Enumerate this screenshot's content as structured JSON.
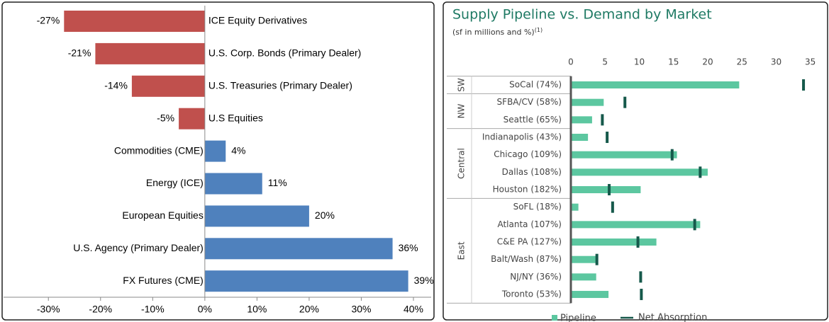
{
  "chart_data": [
    {
      "type": "hbar",
      "categories": [
        "ICE Equity Derivatives",
        "U.S. Corp. Bonds (Primary Dealer)",
        "U.S. Treasuries (Primary Dealer)",
        "U.S Equities",
        "Commodities (CME)",
        "Energy (ICE)",
        "European Equities",
        "U.S. Agency (Primary Dealer)",
        "FX Futures (CME)"
      ],
      "values": [
        -27,
        -21,
        -14,
        -5,
        4,
        11,
        20,
        36,
        39
      ],
      "value_labels": [
        "-27%",
        "-21%",
        "-14%",
        "-5%",
        "4%",
        "11%",
        "20%",
        "36%",
        "39%"
      ],
      "negative_color": "#c0504d",
      "positive_color": "#4f81bd",
      "xlim": [
        -38.6,
        43.4
      ],
      "xticks": [
        {
          "value": -30,
          "label": "-30%"
        },
        {
          "value": -20,
          "label": "-20%"
        },
        {
          "value": -10,
          "label": "-10%"
        },
        {
          "value": 0,
          "label": "0%"
        },
        {
          "value": 10,
          "label": "10%"
        },
        {
          "value": 20,
          "label": "20%"
        },
        {
          "value": 30,
          "label": "30%"
        },
        {
          "value": 40,
          "label": "40%"
        }
      ]
    },
    {
      "type": "bar-marker",
      "title": "Supply Pipeline vs. Demand by Market",
      "subtitle": "(sf in millions and %)",
      "subtitle_note": "(1)",
      "categories": [
        "SoCal (74%)",
        "SFBA/CV (58%)",
        "Seattle (65%)",
        "Indianapolis (43%)",
        "Chicago (109%)",
        "Dallas (108%)",
        "Houston (182%)",
        "SoFL (18%)",
        "Atlanta (107%)",
        "C&E PA (127%)",
        "Balt/Wash (87%)",
        "NJ/NY (36%)",
        "Toronto (53%)"
      ],
      "category_groups": [
        "SW",
        "NW",
        "NW",
        "Central",
        "Central",
        "Central",
        "Central",
        "East",
        "East",
        "East",
        "East",
        "East",
        "East"
      ],
      "series": [
        {
          "name": "Pipeline",
          "color": "#5cc7a0",
          "values": [
            24.6,
            4.8,
            3.1,
            2.5,
            15.5,
            20,
            10.2,
            1.1,
            18.9,
            12.5,
            3.9,
            3.7,
            5.5
          ]
        },
        {
          "name": "Net Absorption",
          "color": "#16594b",
          "values": [
            34,
            7.9,
            4.6,
            5.3,
            14.8,
            18.9,
            5.6,
            6.1,
            18.1,
            9.8,
            3.8,
            10.2,
            10.3
          ]
        }
      ],
      "xlim": [
        0,
        37
      ],
      "xticks": [
        0,
        5,
        10,
        15,
        20,
        25,
        30,
        35
      ]
    }
  ]
}
